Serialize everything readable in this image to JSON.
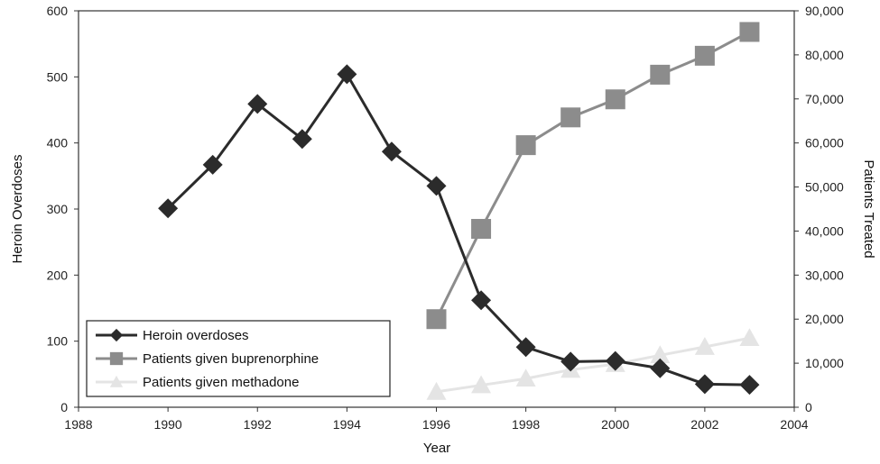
{
  "chart_data": {
    "type": "line",
    "xlabel": "Year",
    "ylabel_left": "Heroin Overdoses",
    "ylabel_right": "Patients Treated",
    "xlim": [
      1988,
      2004
    ],
    "ylim_left": [
      0,
      600
    ],
    "ylim_right": [
      0,
      90000
    ],
    "x_ticks": [
      "1988",
      "1990",
      "1992",
      "1994",
      "1996",
      "1998",
      "2000",
      "2002",
      "2004"
    ],
    "y_left_ticks": [
      "0",
      "100",
      "200",
      "300",
      "400",
      "500",
      "600"
    ],
    "y_right_ticks": [
      "0",
      "10,000",
      "20,000",
      "30,000",
      "40,000",
      "50,000",
      "60,000",
      "70,000",
      "80,000",
      "90,000"
    ],
    "grid": false,
    "legend_position": "bottom-left",
    "series": [
      {
        "name": "Heroin overdoses",
        "axis": "left",
        "color": "#2b2b2b",
        "marker": "diamond",
        "x": [
          1990,
          1991,
          1992,
          1993,
          1994,
          1995,
          1996,
          1997,
          1998,
          1999,
          2000,
          2001,
          2002,
          2003
        ],
        "y": [
          301,
          367,
          459,
          406,
          504,
          387,
          335,
          162,
          91,
          69,
          70,
          59,
          35,
          34
        ]
      },
      {
        "name": "Patients given buprenorphine",
        "axis": "right",
        "color": "#8c8c8c",
        "marker": "square",
        "x": [
          1996,
          1997,
          1998,
          1999,
          2000,
          2001,
          2002,
          2003
        ],
        "y": [
          20000,
          40500,
          59500,
          65800,
          69900,
          75500,
          79800,
          85200
        ]
      },
      {
        "name": "Patients given methadone",
        "axis": "right",
        "color": "#e4e4e4",
        "marker": "triangle",
        "x": [
          1996,
          1997,
          1998,
          1999,
          2000,
          2001,
          2002,
          2003
        ],
        "y": [
          3500,
          5000,
          6500,
          8500,
          9800,
          11800,
          13700,
          15700
        ]
      }
    ]
  }
}
